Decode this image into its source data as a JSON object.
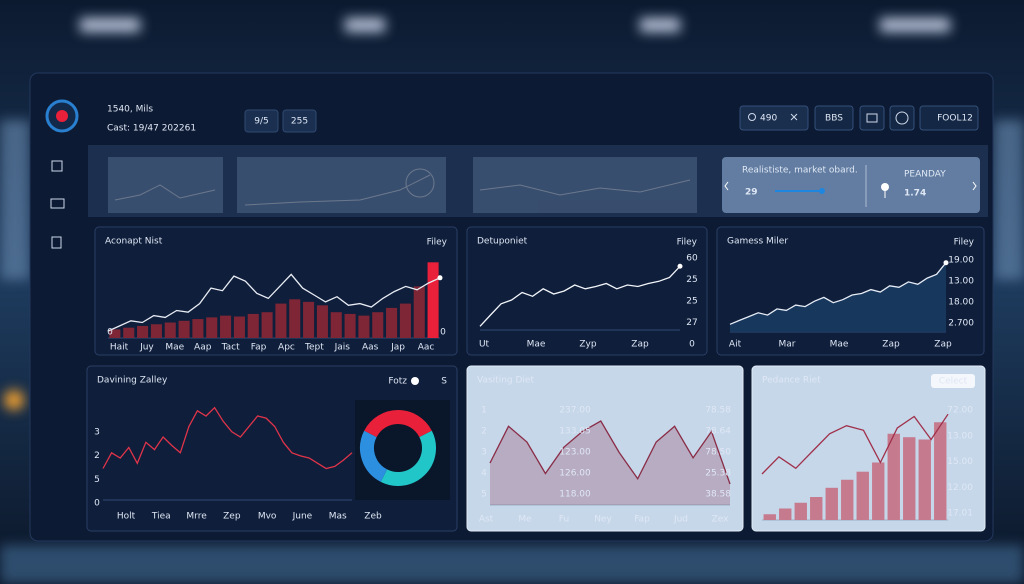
{
  "header": {
    "title": "1540, Mils",
    "subtitle": "Cast: 19/47 202261",
    "chips": [
      "9/5",
      "255"
    ],
    "search": "490",
    "buttons": [
      "BBS",
      "FOOL12"
    ]
  },
  "kpi": {
    "caption": "Realististe, market obard.",
    "value": "29",
    "label": "PEANDAY",
    "value2": "1.74"
  },
  "panels": [
    {
      "title": "Aconapt Nist",
      "actions": [
        "Filey"
      ],
      "x_labels": [
        "Hait",
        "Juy",
        "Mae",
        "Aap",
        "Tact",
        "Fap",
        "Apc",
        "Tept",
        "Jais",
        "Aas",
        "Jap",
        "Aac"
      ],
      "y_labels": [
        "0"
      ],
      "y2_labels": [
        "0"
      ],
      "ylim": [
        0,
        100
      ],
      "series": [
        {
          "style": "bar",
          "color": "#7e2636",
          "highlight_color": "#e8203a",
          "values": [
            10,
            12,
            14,
            16,
            18,
            20,
            22,
            24,
            26,
            25,
            28,
            30,
            40,
            45,
            42,
            38,
            30,
            28,
            26,
            30,
            35,
            40,
            60,
            88
          ]
        },
        {
          "style": "line",
          "color": "#e8ecf4",
          "values": [
            8,
            14,
            20,
            18,
            26,
            24,
            32,
            30,
            40,
            58,
            55,
            72,
            66,
            52,
            46,
            60,
            74,
            58,
            50,
            42,
            48,
            38,
            40,
            36,
            46,
            54,
            60,
            56,
            64,
            70
          ]
        }
      ]
    },
    {
      "title": "Detuponiet",
      "actions": [
        "Filey"
      ],
      "x_labels": [
        "Ut",
        "Mae",
        "Zyp",
        "Zap"
      ],
      "y_labels": [
        "60",
        "25",
        "25",
        "27",
        "0"
      ],
      "ylim": [
        0,
        100
      ],
      "series": [
        {
          "style": "line",
          "color": "#f2f5fa",
          "values": [
            5,
            20,
            35,
            40,
            50,
            45,
            55,
            48,
            52,
            60,
            55,
            58,
            62,
            55,
            60,
            58,
            62,
            65,
            70,
            85
          ]
        }
      ]
    },
    {
      "title": "Gamess Miler",
      "actions": [
        "Filey"
      ],
      "x_labels": [
        "Ait",
        "Mar",
        "Mae",
        "Zap",
        "Zap"
      ],
      "y_labels": [
        "19.00",
        "13.00",
        "18.00",
        "2.700"
      ],
      "ylim": [
        0,
        100
      ],
      "series": [
        {
          "style": "area",
          "color": "#e6ecf6",
          "values": [
            10,
            15,
            20,
            25,
            22,
            30,
            28,
            35,
            33,
            40,
            45,
            38,
            42,
            48,
            50,
            55,
            52,
            60,
            58,
            65,
            62,
            70,
            75,
            90
          ]
        }
      ]
    },
    {
      "title": "Davining Zalley",
      "actions": [
        "Fotz",
        "S"
      ],
      "x_labels": [
        "Holt",
        "Tiea",
        "Mrre",
        "Zep",
        "Mvo",
        "June",
        "Mas",
        "Zeb"
      ],
      "y_labels": [
        "3",
        "2",
        "5",
        "0"
      ],
      "ylim": [
        0,
        100
      ],
      "series": [
        {
          "style": "line",
          "color": "#e0344a",
          "values": [
            30,
            45,
            40,
            50,
            35,
            55,
            48,
            60,
            52,
            45,
            70,
            85,
            80,
            88,
            75,
            65,
            60,
            70,
            80,
            78,
            70,
            55,
            45,
            42,
            40,
            35,
            30,
            32,
            38,
            45
          ]
        }
      ],
      "donut": {
        "values": [
          35,
          40,
          25
        ],
        "colors": [
          "#e8203a",
          "#21c6c9",
          "#2c8fe0"
        ]
      }
    },
    {
      "title": "Vasiting Diet",
      "actions": [],
      "x_labels": [
        "Ast",
        "Me",
        "Fu",
        "Ney",
        "Fap",
        "Jud",
        "Zex"
      ],
      "y_labels": [
        "1",
        "2",
        "3",
        "4",
        "5"
      ],
      "mid_labels": [
        "237.00",
        "133.05",
        "123.00",
        "126.00",
        "118.00"
      ],
      "y2_labels": [
        "78.58",
        "78.64",
        "78.50",
        "25.38",
        "38.58"
      ],
      "ylim": [
        0,
        100
      ],
      "series": [
        {
          "style": "area",
          "color": "#8a2c46",
          "values": [
            40,
            75,
            60,
            30,
            55,
            70,
            80,
            50,
            25,
            60,
            75,
            45,
            70,
            20
          ]
        }
      ]
    },
    {
      "title": "Pedance Riet",
      "actions": [
        "Celect"
      ],
      "x_labels": [],
      "y2_labels": [
        "72.00",
        "13.00",
        "15.00",
        "12.00",
        "17.01"
      ],
      "ylim": [
        0,
        100
      ],
      "series": [
        {
          "style": "bar",
          "color": "#c67a8e",
          "values": [
            5,
            10,
            15,
            20,
            28,
            35,
            42,
            50,
            75,
            72,
            70,
            85
          ]
        },
        {
          "style": "line",
          "color": "#a0304a",
          "values": [
            40,
            55,
            45,
            60,
            75,
            82,
            78,
            50,
            80,
            90,
            70,
            92
          ]
        }
      ]
    }
  ]
}
